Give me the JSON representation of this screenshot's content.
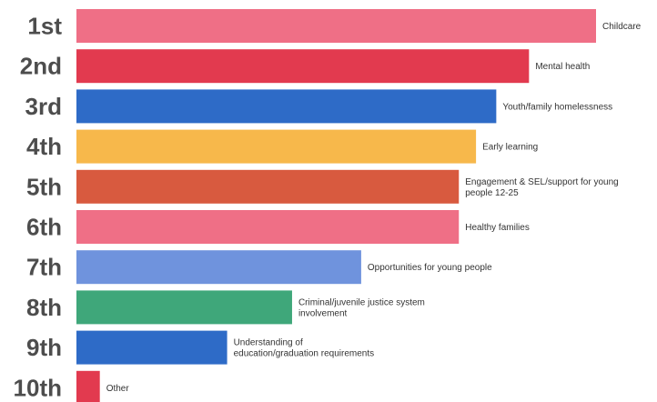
{
  "chart_data": {
    "type": "bar",
    "orientation": "horizontal",
    "title": "",
    "xlabel": "",
    "ylabel": "",
    "xlim": [
      0,
      100
    ],
    "grid": false,
    "legend": "none",
    "categories": [
      "1st",
      "2nd",
      "3rd",
      "4th",
      "5th",
      "6th",
      "7th",
      "8th",
      "9th",
      "10th"
    ],
    "values": [
      100,
      87.1,
      80.8,
      76.9,
      73.6,
      73.6,
      54.8,
      41.5,
      29.0,
      4.5
    ],
    "bar_labels": [
      [
        "Childcare"
      ],
      [
        "Mental health"
      ],
      [
        "Youth/family homelessness"
      ],
      [
        "Early learning"
      ],
      [
        "Engagement & SEL/support for young",
        "people 12-25"
      ],
      [
        "Healthy families"
      ],
      [
        "Opportunities for young people"
      ],
      [
        "Criminal/juvenile justice system",
        "involvement"
      ],
      [
        "Understanding of",
        "education/graduation requirements"
      ],
      [
        "Other"
      ]
    ],
    "colors": [
      "#ef6f86",
      "#e23a4f",
      "#2e6bc7",
      "#f7b84b",
      "#d85a3f",
      "#ef6f86",
      "#6f93dd",
      "#3fa77a",
      "#2e6bc7",
      "#e23a4f"
    ]
  }
}
